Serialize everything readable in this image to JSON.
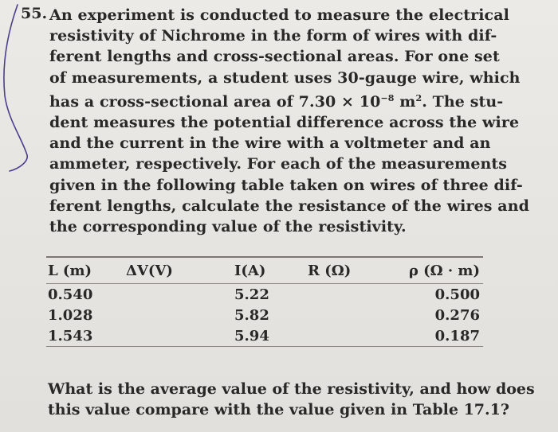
{
  "problem": {
    "number": "55.",
    "lines": [
      "An experiment is conducted to measure the electrical",
      "resistivity of Nichrome in the form of wires with dif-",
      "ferent lengths and cross-sectional areas. For one set",
      "of measurements, a student uses 30-gauge wire, which",
      "has a cross-sectional area of 7.30 × 10",
      "dent measures the potential difference across the wire",
      "and the current in the wire with a voltmeter and an",
      "ammeter, respectively. For each of the measurements",
      "given in the following table taken on wires of three dif-",
      "ferent lengths, calculate the resistance of the wires and",
      "the corresponding value of the resistivity."
    ],
    "exponent": "−8",
    "area_unit": " m",
    "area_unit_exp": "2",
    "line5_tail": ". The stu-"
  },
  "table": {
    "headers": [
      "L (m)",
      "ΔV(V)",
      "I(A)",
      "R (Ω)",
      "ρ (Ω · m)"
    ],
    "rows": [
      [
        "0.540",
        "",
        "5.22",
        "",
        "0.500"
      ],
      [
        "1.028",
        "",
        "5.82",
        "",
        "0.276"
      ],
      [
        "1.543",
        "",
        "5.94",
        "",
        "0.187"
      ]
    ]
  },
  "question": {
    "lines": [
      "What is the average value of the resistivity, and how does",
      "this value compare with the value given in Table 17.1?"
    ]
  }
}
